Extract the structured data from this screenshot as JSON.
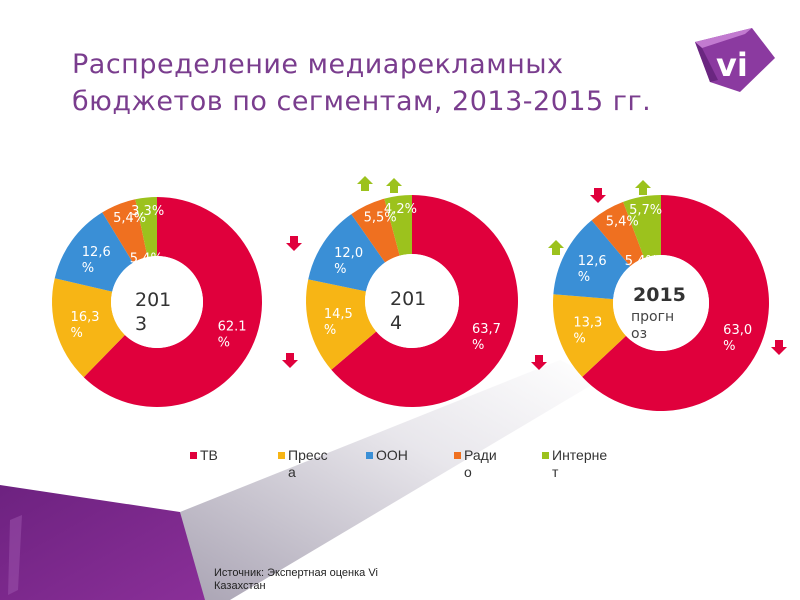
{
  "title": "Распределение медиарекламных бюджетов  по сегментам, 2013-2015 гг.",
  "logo_text": "vi",
  "colors": {
    "tv": "#e0003c",
    "press": "#f7b515",
    "ooh": "#3a8fd6",
    "radio": "#ef7020",
    "internet": "#9cc21d",
    "up_arrow": "#9cc21d",
    "down_arrow": "#e0003c",
    "brand": "#7a3d8e"
  },
  "chart_data": [
    {
      "type": "pie",
      "donut": true,
      "center_label": "201\n3",
      "center_year": "2013",
      "center_sub": "",
      "categories": [
        "ТВ",
        "Пресса",
        "ООН",
        "Радио",
        "Интернет"
      ],
      "values": [
        62.1,
        16.3,
        12.6,
        5.4,
        3.3
      ],
      "labels": [
        "62.1%",
        "16,3%",
        "12,6%",
        "5,4%",
        "3.3%"
      ],
      "extra_labels": [
        "5,4%"
      ],
      "arrows": []
    },
    {
      "type": "pie",
      "donut": true,
      "center_year": "2014",
      "center_sub": "",
      "categories": [
        "ТВ",
        "Пресса",
        "ООН",
        "Радио",
        "Интернет"
      ],
      "values": [
        63.7,
        14.5,
        12.0,
        5.5,
        4.2
      ],
      "labels": [
        "63,7%",
        "14,5%",
        "12,0%",
        "5,5%",
        "4,2%"
      ],
      "extra_labels": [],
      "arrows": [
        {
          "segment": "Пресса",
          "direction": "down"
        },
        {
          "segment": "ООН",
          "direction": "down"
        },
        {
          "segment": "Радио",
          "direction": "up"
        },
        {
          "segment": "Интернет",
          "direction": "up"
        }
      ]
    },
    {
      "type": "pie",
      "donut": true,
      "center_year": "2015",
      "center_sub": "прогноз",
      "categories": [
        "ТВ",
        "Пресса",
        "ООН",
        "Радио",
        "Интернет"
      ],
      "values": [
        63.0,
        13.3,
        12.6,
        5.4,
        5.7
      ],
      "labels": [
        "63,0%",
        "13,3%",
        "12,6%",
        "5,4%",
        "5,7%"
      ],
      "extra_labels": [
        "5,4%"
      ],
      "arrows": [
        {
          "segment": "ТВ",
          "direction": "down"
        },
        {
          "segment": "Пресса",
          "direction": "down"
        },
        {
          "segment": "ООН",
          "direction": "up"
        },
        {
          "segment": "Радио",
          "direction": "down"
        },
        {
          "segment": "Интернет",
          "direction": "up"
        }
      ]
    }
  ],
  "legend": [
    "ТВ",
    "Пресса",
    "ООН",
    "Радио",
    "Интернет"
  ],
  "source": "Источник: Экспертная оценка Vi Казахстан"
}
